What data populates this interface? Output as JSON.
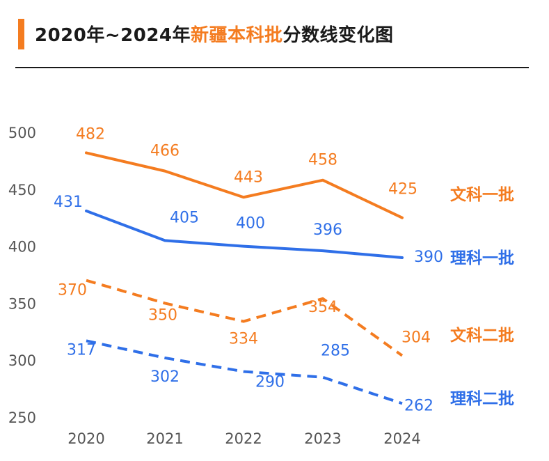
{
  "title": {
    "prefix": "2020年~2024年",
    "highlight": "新疆本科批",
    "suffix": "分数线变化图"
  },
  "colors": {
    "orange": "#f47c20",
    "blue": "#2f6fe8",
    "axis_text": "#555555",
    "title_text": "#1a1a1a"
  },
  "chart_data": {
    "type": "line",
    "x": [
      "2020",
      "2021",
      "2022",
      "2023",
      "2024"
    ],
    "ylim": [
      250,
      500
    ],
    "yticks": [
      250,
      300,
      350,
      400,
      450,
      500
    ],
    "grid": false,
    "legend": "right, inline labels at line ends",
    "series": [
      {
        "name": "文科一批",
        "values": [
          482,
          466,
          443,
          458,
          425
        ],
        "color": "#f47c20",
        "style": "solid"
      },
      {
        "name": "理科一批",
        "values": [
          431,
          405,
          400,
          396,
          390
        ],
        "color": "#2f6fe8",
        "style": "solid"
      },
      {
        "name": "文科二批",
        "values": [
          370,
          350,
          334,
          354,
          304
        ],
        "color": "#f47c20",
        "style": "dashed"
      },
      {
        "name": "理科二批",
        "values": [
          317,
          302,
          290,
          285,
          262
        ],
        "color": "#2f6fe8",
        "style": "dashed"
      }
    ]
  }
}
